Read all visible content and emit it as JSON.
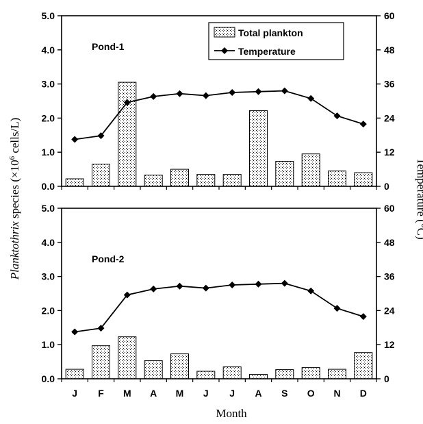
{
  "chart_data": {
    "type": "bar",
    "months": [
      "J",
      "F",
      "M",
      "A",
      "M",
      "J",
      "J",
      "A",
      "S",
      "O",
      "N",
      "D"
    ],
    "x_axis_title": "Month",
    "y_left_title_italic": "Planktothrix",
    "y_left_title_rest": " species (×10",
    "y_left_title_exp": "6",
    "y_left_title_tail": " cells/L)",
    "y_right_title": "Temperature (°C)",
    "y_left_range": [
      0,
      5
    ],
    "y_left_ticks": [
      "0.0",
      "1.0",
      "2.0",
      "3.0",
      "4.0",
      "5.0"
    ],
    "y_right_range": [
      0,
      60
    ],
    "y_right_ticks": [
      "0",
      "12",
      "24",
      "36",
      "48",
      "60"
    ],
    "legend": {
      "bar_label": "Total plankton",
      "line_label": "Temperature",
      "placement": "top-center"
    },
    "panels": [
      {
        "name": "Pond-1",
        "bar_values": [
          0.22,
          0.65,
          3.05,
          0.33,
          0.5,
          0.35,
          0.35,
          2.22,
          0.73,
          0.95,
          0.45,
          0.4
        ],
        "temperature": [
          16.5,
          17.8,
          29.5,
          31.6,
          32.6,
          31.9,
          33.0,
          33.3,
          33.6,
          30.9,
          24.8,
          21.9
        ]
      },
      {
        "name": "Pond-2",
        "bar_values": [
          0.28,
          0.97,
          1.23,
          0.53,
          0.73,
          0.22,
          0.35,
          0.13,
          0.27,
          0.33,
          0.28,
          0.77
        ],
        "temperature": [
          16.5,
          17.8,
          29.5,
          31.6,
          32.6,
          31.9,
          33.0,
          33.3,
          33.6,
          30.9,
          24.8,
          21.9
        ]
      }
    ]
  }
}
